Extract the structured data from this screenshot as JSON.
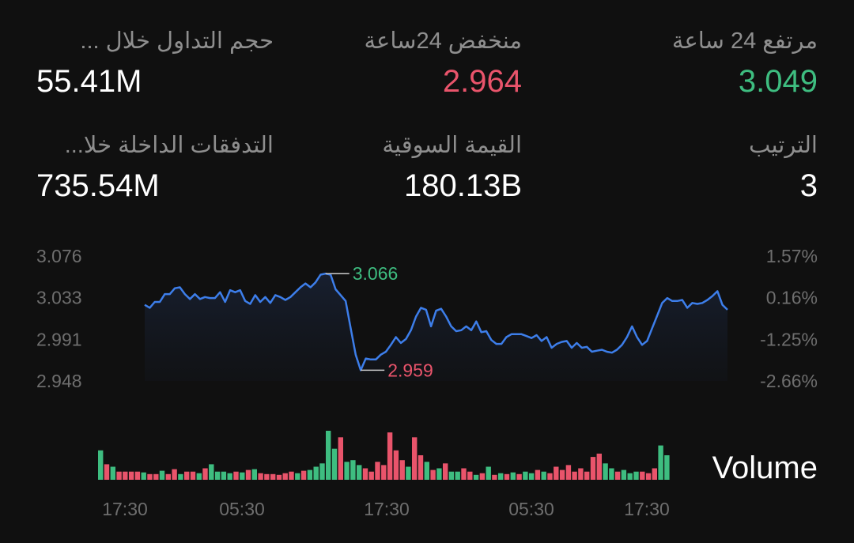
{
  "stats": {
    "high_24h": {
      "label": "مرتفع 24 ساعة",
      "value": "3.049"
    },
    "low_24h": {
      "label": "منخفض 24ساعة",
      "value": "2.964"
    },
    "volume_24h": {
      "label": "حجم التداول خلال ...",
      "value": "55.41M"
    },
    "rank": {
      "label": "الترتيب",
      "value": "3"
    },
    "market_cap": {
      "label": "القيمة السوقية",
      "value": "180.13B"
    },
    "inflows": {
      "label": "التدفقات الداخلة خلا...",
      "value": "735.54M"
    }
  },
  "colors": {
    "up": "#3ebd80",
    "down": "#e9546b",
    "line": "#3d7eea",
    "axis_text": "#6e6e6e"
  },
  "chart_data": {
    "type": "line",
    "y_ticks": [
      "3.076",
      "3.033",
      "2.991",
      "2.948"
    ],
    "y_right_ticks": [
      "1.57%",
      "0.16%",
      "-1.25%",
      "-2.66%"
    ],
    "ylim": [
      2.948,
      3.076
    ],
    "x_ticks": [
      "17:30",
      "05:30",
      "17:30",
      "05:30",
      "17:30"
    ],
    "high": {
      "value": 3.066,
      "label": "3.066"
    },
    "low": {
      "value": 2.959,
      "label": "2.959"
    },
    "values": [
      3.026,
      3.023,
      3.029,
      3.029,
      3.037,
      3.037,
      3.043,
      3.044,
      3.037,
      3.032,
      3.037,
      3.032,
      3.034,
      3.033,
      3.033,
      3.039,
      3.029,
      3.041,
      3.039,
      3.041,
      3.03,
      3.027,
      3.036,
      3.029,
      3.034,
      3.028,
      3.036,
      3.034,
      3.031,
      3.034,
      3.039,
      3.044,
      3.048,
      3.044,
      3.049,
      3.057,
      3.058,
      3.057,
      3.042,
      3.036,
      3.03,
      3.002,
      2.975,
      2.959,
      2.971,
      2.97,
      2.97,
      2.975,
      2.978,
      2.985,
      2.993,
      2.987,
      2.991,
      3.0,
      3.014,
      3.023,
      3.021,
      3.004,
      3.02,
      3.022,
      3.014,
      3.004,
      2.999,
      3.0,
      3.004,
      3.0,
      3.009,
      2.998,
      2.999,
      2.99,
      2.986,
      2.986,
      2.993,
      2.996,
      2.996,
      2.996,
      2.994,
      2.992,
      2.995,
      2.989,
      2.993,
      2.982,
      2.986,
      2.988,
      2.989,
      2.982,
      2.987,
      2.982,
      2.983,
      2.978,
      2.979,
      2.98,
      2.978,
      2.977,
      2.98,
      2.985,
      2.993,
      3.004,
      2.993,
      2.985,
      2.989,
      3.002,
      3.015,
      3.028,
      3.033,
      3.03,
      3.03,
      3.031,
      3.023,
      3.028,
      3.027,
      3.028,
      3.031,
      3.035,
      3.04,
      3.026,
      3.021
    ],
    "volume": {
      "label": "Volume",
      "bars": [
        {
          "v": 36,
          "up": true
        },
        {
          "v": 19,
          "up": false
        },
        {
          "v": 16,
          "up": true
        },
        {
          "v": 10,
          "up": false
        },
        {
          "v": 10,
          "up": false
        },
        {
          "v": 10,
          "up": false
        },
        {
          "v": 10,
          "up": false
        },
        {
          "v": 9,
          "up": true
        },
        {
          "v": 7,
          "up": false
        },
        {
          "v": 7,
          "up": false
        },
        {
          "v": 11,
          "up": true
        },
        {
          "v": 7,
          "up": false
        },
        {
          "v": 13,
          "up": false
        },
        {
          "v": 7,
          "up": true
        },
        {
          "v": 10,
          "up": false
        },
        {
          "v": 10,
          "up": false
        },
        {
          "v": 8,
          "up": true
        },
        {
          "v": 14,
          "up": false
        },
        {
          "v": 19,
          "up": true
        },
        {
          "v": 10,
          "up": true
        },
        {
          "v": 10,
          "up": true
        },
        {
          "v": 8,
          "up": true
        },
        {
          "v": 10,
          "up": false
        },
        {
          "v": 9,
          "up": true
        },
        {
          "v": 12,
          "up": false
        },
        {
          "v": 13,
          "up": true
        },
        {
          "v": 8,
          "up": false
        },
        {
          "v": 7,
          "up": false
        },
        {
          "v": 7,
          "up": false
        },
        {
          "v": 6,
          "up": false
        },
        {
          "v": 8,
          "up": false
        },
        {
          "v": 10,
          "up": false
        },
        {
          "v": 8,
          "up": true
        },
        {
          "v": 11,
          "up": false
        },
        {
          "v": 12,
          "up": true
        },
        {
          "v": 16,
          "up": true
        },
        {
          "v": 20,
          "up": true
        },
        {
          "v": 60,
          "up": true
        },
        {
          "v": 38,
          "up": true
        },
        {
          "v": 52,
          "up": false
        },
        {
          "v": 22,
          "up": true
        },
        {
          "v": 24,
          "up": true
        },
        {
          "v": 18,
          "up": true
        },
        {
          "v": 14,
          "up": false
        },
        {
          "v": 10,
          "up": false
        },
        {
          "v": 22,
          "up": false
        },
        {
          "v": 18,
          "up": false
        },
        {
          "v": 58,
          "up": false
        },
        {
          "v": 36,
          "up": false
        },
        {
          "v": 24,
          "up": false
        },
        {
          "v": 16,
          "up": true
        },
        {
          "v": 52,
          "up": false
        },
        {
          "v": 30,
          "up": false
        },
        {
          "v": 22,
          "up": true
        },
        {
          "v": 12,
          "up": false
        },
        {
          "v": 14,
          "up": true
        },
        {
          "v": 20,
          "up": false
        },
        {
          "v": 10,
          "up": true
        },
        {
          "v": 10,
          "up": true
        },
        {
          "v": 14,
          "up": false
        },
        {
          "v": 10,
          "up": false
        },
        {
          "v": 6,
          "up": true
        },
        {
          "v": 8,
          "up": false
        },
        {
          "v": 16,
          "up": true
        },
        {
          "v": 6,
          "up": false
        },
        {
          "v": 8,
          "up": true
        },
        {
          "v": 7,
          "up": false
        },
        {
          "v": 9,
          "up": true
        },
        {
          "v": 7,
          "up": false
        },
        {
          "v": 10,
          "up": true
        },
        {
          "v": 8,
          "up": true
        },
        {
          "v": 12,
          "up": false
        },
        {
          "v": 10,
          "up": true
        },
        {
          "v": 8,
          "up": false
        },
        {
          "v": 16,
          "up": false
        },
        {
          "v": 12,
          "up": false
        },
        {
          "v": 18,
          "up": false
        },
        {
          "v": 10,
          "up": false
        },
        {
          "v": 14,
          "up": false
        },
        {
          "v": 10,
          "up": false
        },
        {
          "v": 28,
          "up": false
        },
        {
          "v": 32,
          "up": false
        },
        {
          "v": 20,
          "up": true
        },
        {
          "v": 14,
          "up": true
        },
        {
          "v": 10,
          "up": false
        },
        {
          "v": 12,
          "up": true
        },
        {
          "v": 8,
          "up": true
        },
        {
          "v": 10,
          "up": true
        },
        {
          "v": 10,
          "up": false
        },
        {
          "v": 8,
          "up": false
        },
        {
          "v": 14,
          "up": false
        },
        {
          "v": 42,
          "up": true
        },
        {
          "v": 30,
          "up": true
        }
      ]
    }
  }
}
